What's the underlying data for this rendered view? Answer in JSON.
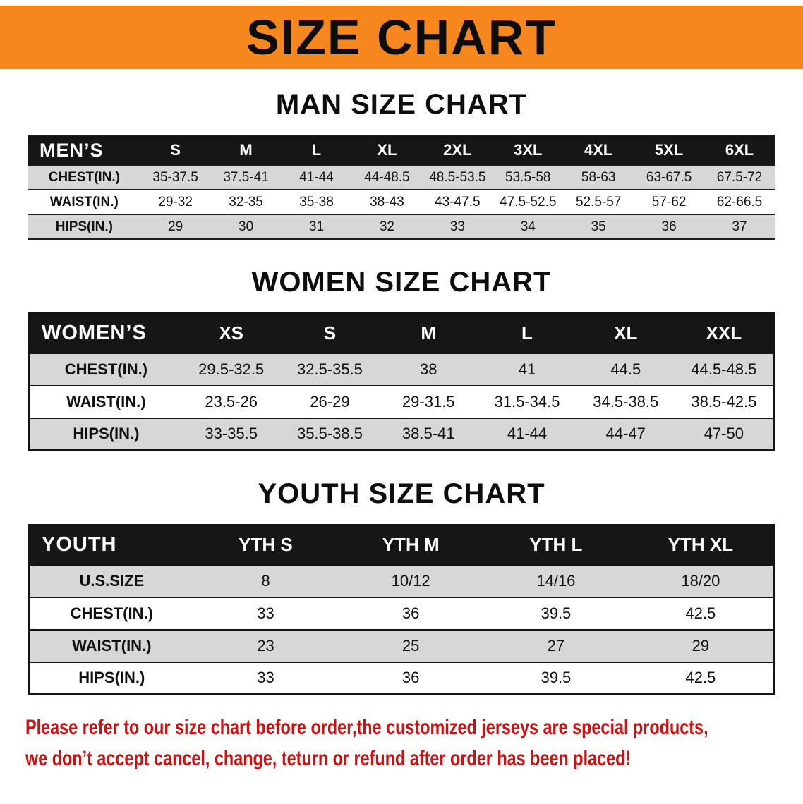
{
  "banner": {
    "title": "SIZE CHART"
  },
  "colors": {
    "banner_bg": "#F6871E",
    "header_bg": "#161616",
    "row_shade": "#D7D7D7",
    "disclaimer_red": "#D01111"
  },
  "chart_data": [
    {
      "type": "table",
      "title": "MAN SIZE CHART",
      "corner_label": "MEN’S",
      "columns": [
        "S",
        "M",
        "L",
        "XL",
        "2XL",
        "3XL",
        "4XL",
        "5XL",
        "6XL"
      ],
      "rows": [
        {
          "label": "CHEST(IN.)",
          "values": [
            "35-37.5",
            "37.5-41",
            "41-44",
            "44-48.5",
            "48.5-53.5",
            "53.5-58",
            "58-63",
            "63-67.5",
            "67.5-72"
          ]
        },
        {
          "label": "WAIST(IN.)",
          "values": [
            "29-32",
            "32-35",
            "35-38",
            "38-43",
            "43-47.5",
            "47.5-52.5",
            "52.5-57",
            "57-62",
            "62-66.5"
          ]
        },
        {
          "label": "HIPS(IN.)",
          "values": [
            "29",
            "30",
            "31",
            "32",
            "33",
            "34",
            "35",
            "36",
            "37"
          ]
        }
      ]
    },
    {
      "type": "table",
      "title": "WOMEN SIZE CHART",
      "corner_label": "WOMEN’S",
      "columns": [
        "XS",
        "S",
        "M",
        "L",
        "XL",
        "XXL"
      ],
      "rows": [
        {
          "label": "CHEST(IN.)",
          "values": [
            "29.5-32.5",
            "32.5-35.5",
            "38",
            "41",
            "44.5",
            "44.5-48.5"
          ]
        },
        {
          "label": "WAIST(IN.)",
          "values": [
            "23.5-26",
            "26-29",
            "29-31.5",
            "31.5-34.5",
            "34.5-38.5",
            "38.5-42.5"
          ]
        },
        {
          "label": "HIPS(IN.)",
          "values": [
            "33-35.5",
            "35.5-38.5",
            "38.5-41",
            "41-44",
            "44-47",
            "47-50"
          ]
        }
      ]
    },
    {
      "type": "table",
      "title": "YOUTH SIZE CHART",
      "corner_label": "YOUTH",
      "columns": [
        "YTH S",
        "YTH M",
        "YTH L",
        "YTH XL"
      ],
      "rows": [
        {
          "label": "U.S.SIZE",
          "values": [
            "8",
            "10/12",
            "14/16",
            "18/20"
          ]
        },
        {
          "label": "CHEST(IN.)",
          "values": [
            "33",
            "36",
            "39.5",
            "42.5"
          ]
        },
        {
          "label": "WAIST(IN.)",
          "values": [
            "23",
            "25",
            "27",
            "29"
          ]
        },
        {
          "label": "HIPS(IN.)",
          "values": [
            "33",
            "36",
            "39.5",
            "42.5"
          ]
        }
      ]
    }
  ],
  "disclaimer": {
    "line1": "Please refer to our size chart before order,the customized jerseys are special products,",
    "line2": "we don’t accept cancel, change, teturn or refund after order has been placed!"
  }
}
